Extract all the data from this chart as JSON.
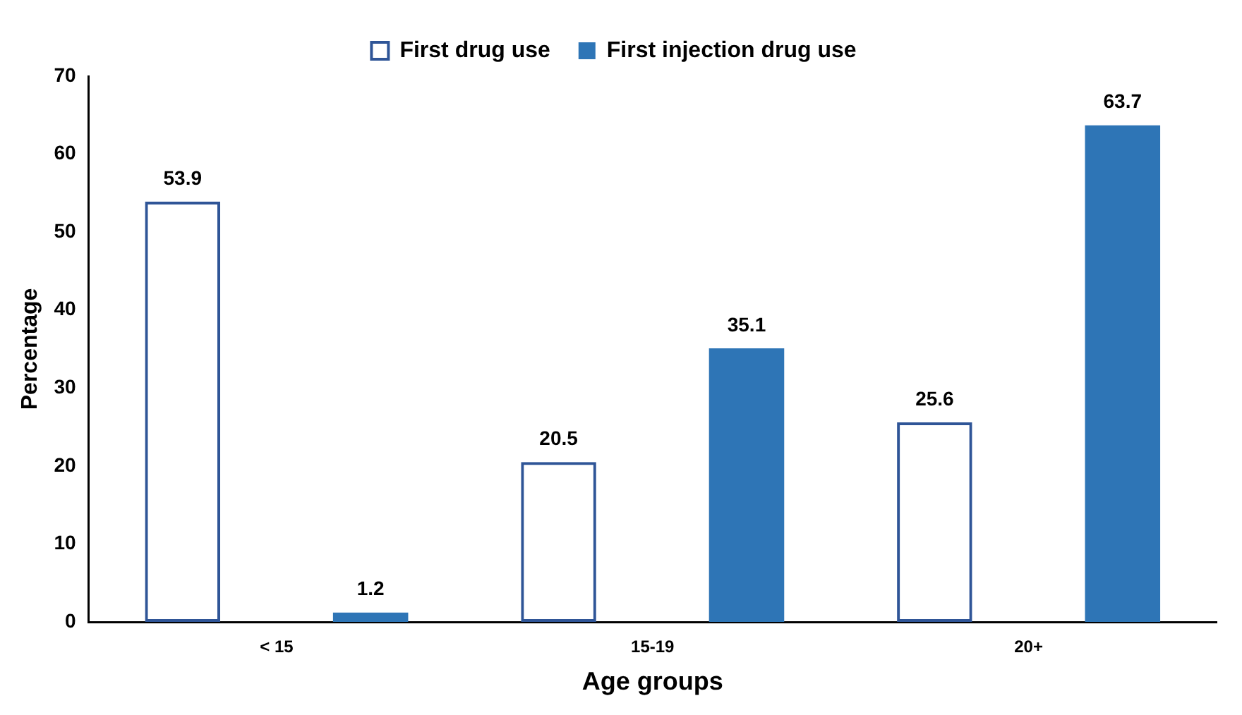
{
  "chart_data": {
    "type": "bar",
    "xlabel": "Age groups",
    "ylabel": "Percentage",
    "categories": [
      "< 15",
      "15-19",
      "20+"
    ],
    "series": [
      {
        "name": "First drug use",
        "color": "#2f5597",
        "values": [
          53.9,
          20.5,
          25.6
        ]
      },
      {
        "name": "First injection drug use",
        "color": "#2e75b6",
        "values": [
          1.2,
          35.1,
          63.7
        ]
      }
    ],
    "ylim": [
      0,
      70
    ],
    "yticks": [
      0,
      10,
      20,
      30,
      40,
      50,
      60,
      70
    ],
    "grid": false,
    "legend": "top",
    "data_labels": true
  }
}
